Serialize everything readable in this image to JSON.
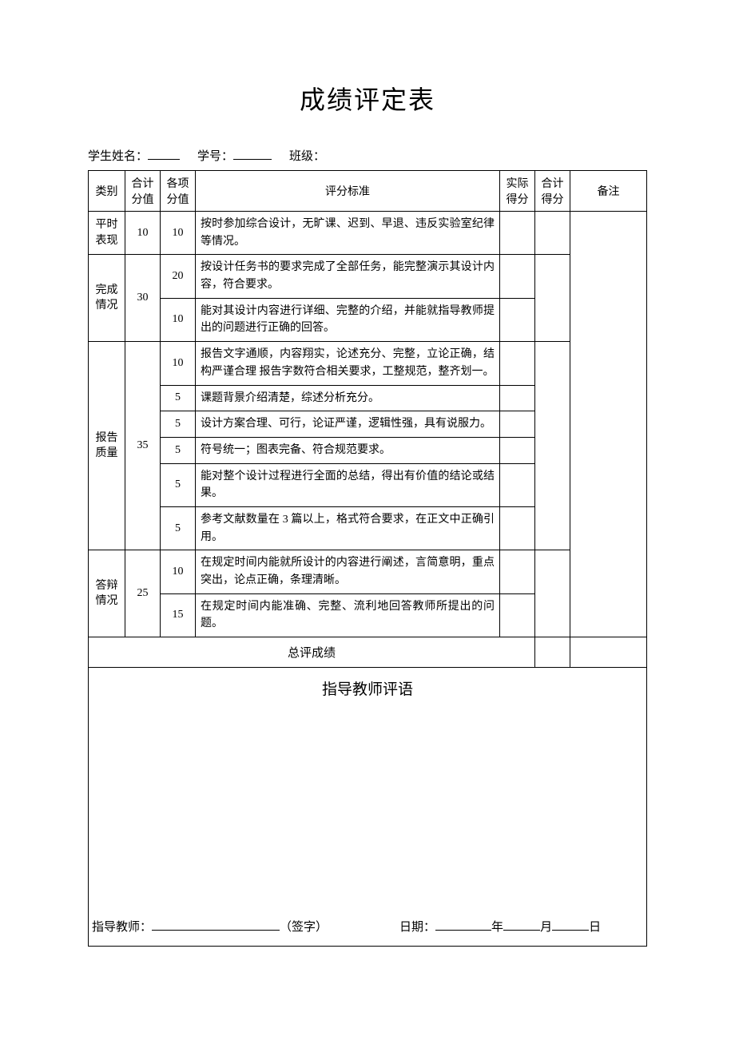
{
  "title": "成绩评定表",
  "meta": {
    "nameLabel": "学生姓名：",
    "idLabel": "学号：",
    "classLabel": "班级："
  },
  "headers": {
    "category": "类别",
    "totalScore": "合计\n分值",
    "subScore": "各项\n分值",
    "criteria": "评分标准",
    "actual": "实际\n得分",
    "sum": "合计\n得分",
    "note": "备注"
  },
  "categories": [
    {
      "name": "平时\n表现",
      "total": 10,
      "rows": [
        {
          "sub": 10,
          "text": "按时参加综合设计，无旷课、迟到、早退、违反实验室纪律等情况。"
        }
      ]
    },
    {
      "name": "完成\n情况",
      "total": 30,
      "rows": [
        {
          "sub": 20,
          "text": "按设计任务书的要求完成了全部任务，能完整演示其设计内容，符合要求。"
        },
        {
          "sub": 10,
          "text": "能对其设计内容进行详细、完整的介绍，并能就指导教师提出的问题进行正确的回答。"
        }
      ]
    },
    {
      "name": "报告\n质量",
      "total": 35,
      "rows": [
        {
          "sub": 10,
          "text": "报告文字通顺，内容翔实，论述充分、完整，立论正确，结构严谨合理 报告字数符合相关要求，工整规范，整齐划一。"
        },
        {
          "sub": 5,
          "text": "课题背景介绍清楚，综述分析充分。"
        },
        {
          "sub": 5,
          "text": "设计方案合理、可行，论证严谨，逻辑性强，具有说服力。"
        },
        {
          "sub": 5,
          "text": "符号统一；图表完备、符合规范要求。"
        },
        {
          "sub": 5,
          "text": "能对整个设计过程进行全面的总结，得出有价值的结论或结果。"
        },
        {
          "sub": 5,
          "text": "参考文献数量在 3 篇以上，格式符合要求，在正文中正确引用。"
        }
      ]
    },
    {
      "name": "答辩\n情况",
      "total": 25,
      "rows": [
        {
          "sub": 10,
          "text": "在规定时间内能就所设计的内容进行阐述，言简意明，重点突出，论点正确，条理清晰。"
        },
        {
          "sub": 15,
          "text": "在规定时间内能准确、完整、流利地回答教师所提出的问题。"
        }
      ]
    }
  ],
  "finalLabel": "总评成绩",
  "commentTitle": "指导教师评语",
  "sign": {
    "teacher": "指导教师：",
    "signMark": "（签字）",
    "date": "日期：",
    "year": "年",
    "month": "月",
    "day": "日"
  },
  "style": {
    "bg": "#ffffff",
    "fg": "#000000",
    "border": "#000000",
    "titleFontSize": 32,
    "bodyFontSize": 14
  }
}
